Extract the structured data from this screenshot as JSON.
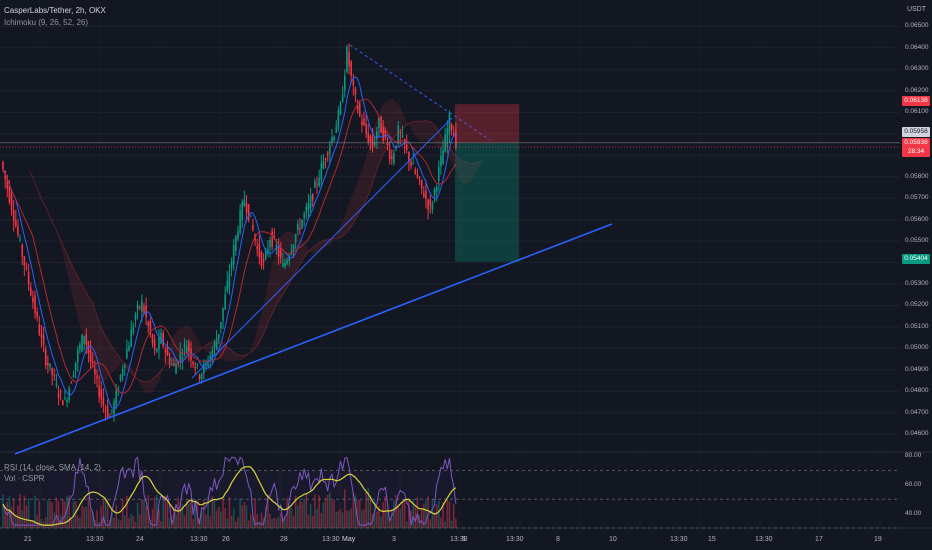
{
  "header": {
    "symbol": "CasperLabs/Tether, 2h, OKX",
    "ichimoku": "Ichimoku (9, 26, 52, 26)",
    "rsi": "RSI (14, close, SMA, 14, 2)",
    "volume": "Vol · CSPR"
  },
  "price_axis": {
    "currency": "USDT",
    "ticks": [
      "0.06500",
      "0.06400",
      "0.06300",
      "0.06200",
      "0.06100",
      "0.06000",
      "0.05900",
      "0.05800",
      "0.05700",
      "0.05600",
      "0.05500",
      "0.05400",
      "0.05300",
      "0.05200",
      "0.05100",
      "0.05000",
      "0.04900",
      "0.04800",
      "0.04700",
      "0.04600"
    ],
    "rsi_ticks": [
      "80.00",
      "60.00",
      "40.00"
    ]
  },
  "price_labels": {
    "stop": {
      "text": "0.06138",
      "color": "#f23645"
    },
    "entry": {
      "text": "0.05958",
      "color": "#787b86"
    },
    "last": {
      "text": "0.05938",
      "color": "#f23645"
    },
    "countdown": {
      "text": "28:34"
    },
    "target": {
      "text": "0.05404",
      "color": "#089981"
    }
  },
  "time_axis": [
    "21",
    "13:30",
    "24",
    "13:30",
    "26",
    "28",
    "13:30",
    "May",
    "3",
    "13:30",
    "5",
    "13:30",
    "8",
    "10",
    "13:30",
    "15",
    "13:30",
    "17",
    "19"
  ],
  "colors": {
    "up": "#089981",
    "down": "#f23645",
    "trendline": "#2962ff",
    "rsi_line": "#7e57c2",
    "rsi_ma": "#d7d436"
  },
  "chart_data": {
    "type": "candlestick",
    "symbol": "CasperLabs/Tether",
    "timeframe": "2h",
    "price_range": [
      0.0455,
      0.066
    ],
    "ohlc_path": [
      0.0587,
      0.0575,
      0.0562,
      0.0548,
      0.0535,
      0.0522,
      0.0508,
      0.0495,
      0.0488,
      0.0479,
      0.0475,
      0.0486,
      0.0498,
      0.0507,
      0.0494,
      0.0483,
      0.0474,
      0.0468,
      0.0478,
      0.0492,
      0.0503,
      0.0516,
      0.0521,
      0.051,
      0.0498,
      0.0505,
      0.0496,
      0.0491,
      0.0497,
      0.0502,
      0.0494,
      0.0488,
      0.0492,
      0.0499,
      0.0508,
      0.0524,
      0.0541,
      0.0557,
      0.057,
      0.0559,
      0.0546,
      0.0539,
      0.0552,
      0.0547,
      0.0538,
      0.0545,
      0.0553,
      0.056,
      0.0566,
      0.0575,
      0.0584,
      0.0593,
      0.0601,
      0.0612,
      0.0638,
      0.062,
      0.0608,
      0.06,
      0.0594,
      0.0605,
      0.0597,
      0.0588,
      0.0601,
      0.0594,
      0.0586,
      0.0579,
      0.0572,
      0.0565,
      0.0578,
      0.0592,
      0.0607,
      0.0596
    ],
    "last_price": 0.05938,
    "position": {
      "type": "short",
      "entry": 0.05958,
      "stop": 0.06138,
      "target": 0.05404
    },
    "rsi_range": [
      30,
      80
    ],
    "rsi_levels": [
      70,
      50,
      30
    ]
  }
}
